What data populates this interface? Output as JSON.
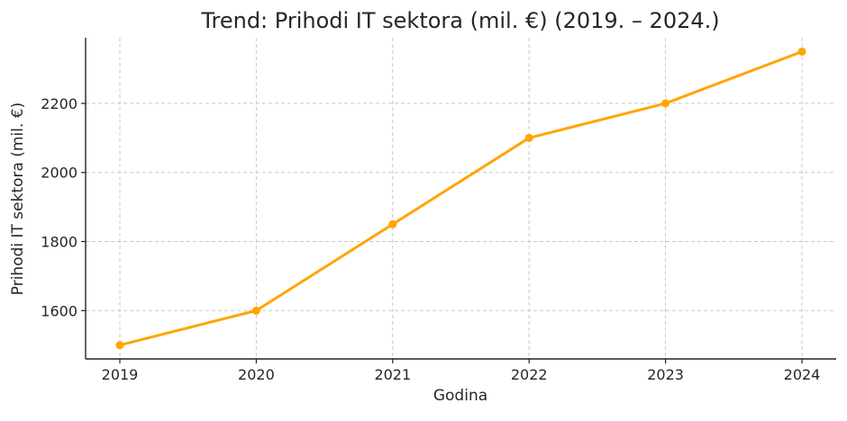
{
  "chart_data": {
    "type": "line",
    "title": "Trend: Prihodi IT sektora (mil. €) (2019. – 2024.)",
    "xlabel": "Godina",
    "ylabel": "Prihodi IT sektora (mil. €)",
    "categories": [
      "2019",
      "2020",
      "2021",
      "2022",
      "2023",
      "2024"
    ],
    "series": [
      {
        "values": [
          1500,
          1600,
          1850,
          2100,
          2200,
          2350
        ],
        "color": "#FFA500"
      }
    ],
    "yticks": [
      1600,
      1800,
      2000,
      2200
    ],
    "ylim": [
      1460,
      2390
    ],
    "grid": true,
    "legend": "none"
  }
}
